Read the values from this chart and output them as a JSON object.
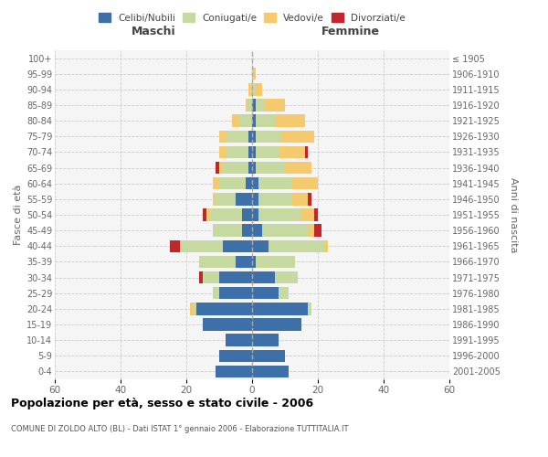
{
  "age_groups": [
    "0-4",
    "5-9",
    "10-14",
    "15-19",
    "20-24",
    "25-29",
    "30-34",
    "35-39",
    "40-44",
    "45-49",
    "50-54",
    "55-59",
    "60-64",
    "65-69",
    "70-74",
    "75-79",
    "80-84",
    "85-89",
    "90-94",
    "95-99",
    "100+"
  ],
  "birth_years": [
    "2001-2005",
    "1996-2000",
    "1991-1995",
    "1986-1990",
    "1981-1985",
    "1976-1980",
    "1971-1975",
    "1966-1970",
    "1961-1965",
    "1956-1960",
    "1951-1955",
    "1946-1950",
    "1941-1945",
    "1936-1940",
    "1931-1935",
    "1926-1930",
    "1921-1925",
    "1916-1920",
    "1911-1915",
    "1906-1910",
    "≤ 1905"
  ],
  "male": {
    "celibi": [
      11,
      10,
      8,
      15,
      17,
      10,
      10,
      5,
      9,
      3,
      3,
      5,
      2,
      1,
      1,
      1,
      0,
      0,
      0,
      0,
      0
    ],
    "coniugati": [
      0,
      0,
      0,
      0,
      1,
      2,
      5,
      11,
      13,
      9,
      10,
      6,
      8,
      8,
      7,
      7,
      4,
      1,
      0,
      0,
      0
    ],
    "vedovi": [
      0,
      0,
      0,
      0,
      1,
      0,
      0,
      0,
      0,
      0,
      1,
      1,
      2,
      1,
      2,
      2,
      2,
      1,
      1,
      0,
      0
    ],
    "divorziati": [
      0,
      0,
      0,
      0,
      0,
      0,
      1,
      0,
      3,
      0,
      1,
      0,
      0,
      1,
      0,
      0,
      0,
      0,
      0,
      0,
      0
    ]
  },
  "female": {
    "nubili": [
      11,
      10,
      8,
      15,
      17,
      8,
      7,
      1,
      5,
      3,
      2,
      2,
      2,
      1,
      1,
      1,
      1,
      1,
      0,
      0,
      0
    ],
    "coniugate": [
      0,
      0,
      0,
      0,
      1,
      3,
      7,
      12,
      17,
      14,
      13,
      10,
      10,
      9,
      7,
      8,
      6,
      3,
      1,
      0,
      0
    ],
    "vedove": [
      0,
      0,
      0,
      0,
      0,
      0,
      0,
      0,
      1,
      2,
      4,
      5,
      8,
      8,
      8,
      10,
      9,
      6,
      2,
      1,
      0
    ],
    "divorziate": [
      0,
      0,
      0,
      0,
      0,
      0,
      0,
      0,
      0,
      2,
      1,
      1,
      0,
      0,
      1,
      0,
      0,
      0,
      0,
      0,
      0
    ]
  },
  "colors": {
    "celibi": "#3d6fa8",
    "coniugati": "#c5d9a0",
    "vedovi": "#f5c96e",
    "divorziati": "#c0272d"
  },
  "xlim": 60,
  "title": "Popolazione per età, sesso e stato civile - 2006",
  "subtitle": "COMUNE DI ZOLDO ALTO (BL) - Dati ISTAT 1° gennaio 2006 - Elaborazione TUTTITALIA.IT",
  "ylabel_left": "Fasce di età",
  "ylabel_right": "Anni di nascita",
  "legend_labels": [
    "Celibi/Nubili",
    "Coniugati/e",
    "Vedovi/e",
    "Divorziati/e"
  ],
  "maschi_label": "Maschi",
  "femmine_label": "Femmine",
  "bg_color": "#f0f0f0"
}
